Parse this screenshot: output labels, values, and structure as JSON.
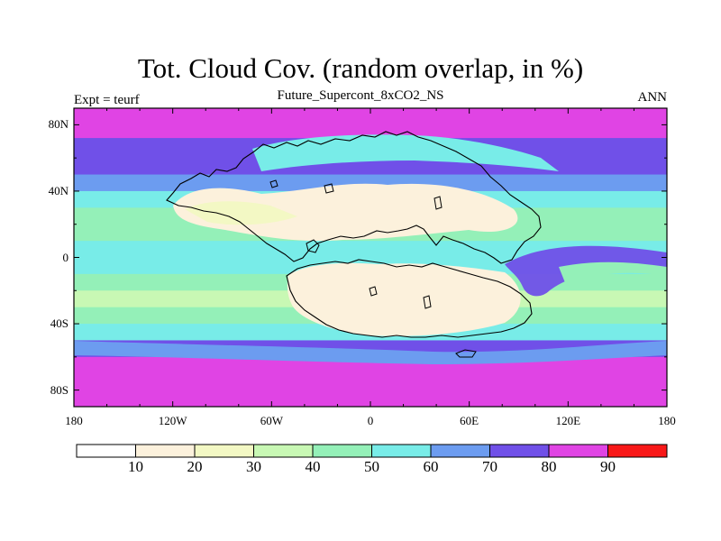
{
  "chart_data": {
    "type": "heatmap",
    "title": "Tot. Cloud Cov. (random overlap, in %)",
    "subtitle": "Future_Supercont_8xCO2_NS",
    "left_label": "Expt = teurf",
    "right_label": "ANN",
    "x_ticks": [
      {
        "value": -180,
        "label": "180"
      },
      {
        "value": -120,
        "label": "120W"
      },
      {
        "value": -60,
        "label": "60W"
      },
      {
        "value": 0,
        "label": "0"
      },
      {
        "value": 60,
        "label": "60E"
      },
      {
        "value": 120,
        "label": "120E"
      },
      {
        "value": 180,
        "label": "180"
      }
    ],
    "y_ticks": [
      {
        "value": 80,
        "label": "80N"
      },
      {
        "value": 40,
        "label": "40N"
      },
      {
        "value": 0,
        "label": "0"
      },
      {
        "value": -40,
        "label": "40S"
      },
      {
        "value": -80,
        "label": "80S"
      }
    ],
    "xlim": [
      -180,
      180
    ],
    "ylim": [
      -90,
      90
    ],
    "colorbar": {
      "levels": [
        10,
        20,
        30,
        40,
        50,
        60,
        70,
        80,
        90
      ],
      "labels": [
        "10",
        "20",
        "30",
        "40",
        "50",
        "60",
        "70",
        "80",
        "90"
      ],
      "colors": [
        "#ffffff",
        "#fcf1dc",
        "#f3f8c4",
        "#c8f8b4",
        "#94f0b8",
        "#78ece8",
        "#6c9cf0",
        "#7050e8",
        "#e044e4",
        "#f81818"
      ]
    },
    "zonal_mean_cloud_cover": [
      {
        "lat": 90,
        "value": 85
      },
      {
        "lat": 80,
        "value": 85
      },
      {
        "lat": 72,
        "value": 75
      },
      {
        "lat": 60,
        "value": 72
      },
      {
        "lat": 50,
        "value": 60
      },
      {
        "lat": 40,
        "value": 55
      },
      {
        "lat": 30,
        "value": 45
      },
      {
        "lat": 20,
        "value": 42
      },
      {
        "lat": 10,
        "value": 50
      },
      {
        "lat": 0,
        "value": 58
      },
      {
        "lat": -10,
        "value": 45
      },
      {
        "lat": -20,
        "value": 38
      },
      {
        "lat": -30,
        "value": 42
      },
      {
        "lat": -40,
        "value": 55
      },
      {
        "lat": -50,
        "value": 72
      },
      {
        "lat": -60,
        "value": 85
      },
      {
        "lat": -70,
        "value": 85
      },
      {
        "lat": -90,
        "value": 85
      }
    ],
    "grid": false
  }
}
